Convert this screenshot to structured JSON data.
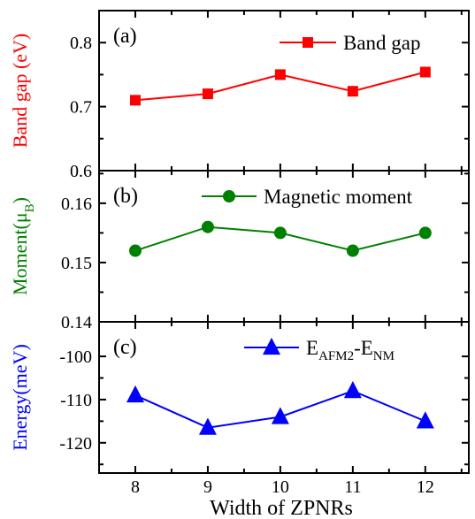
{
  "chart_data": [
    {
      "type": "line",
      "panel_label": "(a)",
      "ylabel_parts": [
        "Band gap (eV)"
      ],
      "ylabel_color": "#ff0000",
      "color": "#ff0000",
      "marker": "square",
      "x": [
        8,
        9,
        10,
        11,
        12
      ],
      "series": [
        {
          "name": "Band gap",
          "name_sub": [],
          "values": [
            0.71,
            0.72,
            0.75,
            0.724,
            0.754
          ]
        }
      ],
      "ylim": [
        0.6,
        0.85
      ],
      "yticks": [
        "0.6",
        "0.7",
        "0.8"
      ],
      "yticks_val": [
        0.6,
        0.7,
        0.8
      ],
      "legend_position": "top-right"
    },
    {
      "type": "line",
      "panel_label": "(b)",
      "ylabel_parts": [
        "Moment(μ",
        "B",
        ")"
      ],
      "ylabel_color": "#008000",
      "color": "#008000",
      "marker": "circle",
      "x": [
        8,
        9,
        10,
        11,
        12
      ],
      "series": [
        {
          "name": "Magnetic moment",
          "name_sub": [],
          "values": [
            0.152,
            0.156,
            0.155,
            0.152,
            0.155
          ]
        }
      ],
      "ylim": [
        0.14,
        0.1655
      ],
      "yticks": [
        "0.14",
        "0.15",
        "0.16"
      ],
      "yticks_val": [
        0.14,
        0.15,
        0.16
      ],
      "legend_position": "top-right"
    },
    {
      "type": "line",
      "panel_label": "(c)",
      "ylabel_parts": [
        "Energy(meV)"
      ],
      "ylabel_color": "#0000ff",
      "color": "#0000ff",
      "marker": "triangle",
      "x": [
        8,
        9,
        10,
        11,
        12
      ],
      "series": [
        {
          "name": "E",
          "name_sub": [
            "AFM2",
            "-E",
            "NM"
          ],
          "values": [
            -109,
            -116.5,
            -114,
            -108,
            -115
          ]
        }
      ],
      "ylim": [
        -127,
        -92
      ],
      "yticks": [
        "-100",
        "-110",
        "-120"
      ],
      "yticks_val": [
        -100,
        -110,
        -120
      ],
      "legend_position": "top-right"
    }
  ],
  "shared": {
    "xlabel": "Width of ZPNRs",
    "xticks": [
      "8",
      "9",
      "10",
      "11",
      "12"
    ],
    "xlim": [
      7.5,
      12.6
    ]
  }
}
